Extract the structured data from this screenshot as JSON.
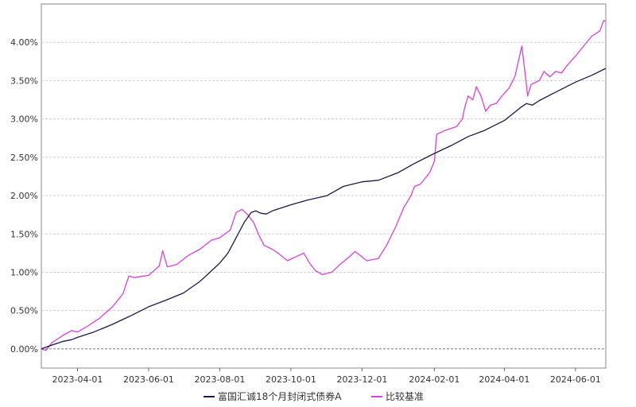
{
  "chart_data": {
    "type": "line",
    "title": "",
    "xlabel": "",
    "ylabel": "",
    "x_range": [
      "2023-03-01",
      "2024-06-27"
    ],
    "ylim": [
      -0.25,
      4.5
    ],
    "y_ticks": [
      0.0,
      0.5,
      1.0,
      1.5,
      2.0,
      2.5,
      3.0,
      3.5,
      4.0
    ],
    "y_tick_labels": [
      "0.00%",
      "0.50%",
      "1.00%",
      "1.50%",
      "2.00%",
      "2.50%",
      "3.00%",
      "3.50%",
      "4.00%"
    ],
    "x_tick_labels": [
      "2023-04-01",
      "2023-06-01",
      "2023-08-01",
      "2023-10-01",
      "2023-12-01",
      "2024-02-01",
      "2024-04-01",
      "2024-06-01"
    ],
    "grid": "horizontal dashed",
    "legend_position": "bottom",
    "series": [
      {
        "name": "富国汇诚18个月封闭式债券A",
        "color": "#1a1a4e",
        "points": [
          [
            "2023-03-01",
            0.0
          ],
          [
            "2023-03-10",
            0.05
          ],
          [
            "2023-03-20",
            0.1
          ],
          [
            "2023-03-27",
            0.12
          ],
          [
            "2023-04-01",
            0.15
          ],
          [
            "2023-04-15",
            0.22
          ],
          [
            "2023-05-01",
            0.32
          ],
          [
            "2023-05-15",
            0.42
          ],
          [
            "2023-06-01",
            0.55
          ],
          [
            "2023-06-15",
            0.63
          ],
          [
            "2023-07-01",
            0.73
          ],
          [
            "2023-07-15",
            0.88
          ],
          [
            "2023-07-25",
            1.02
          ],
          [
            "2023-08-01",
            1.12
          ],
          [
            "2023-08-08",
            1.25
          ],
          [
            "2023-08-15",
            1.45
          ],
          [
            "2023-08-22",
            1.65
          ],
          [
            "2023-08-28",
            1.78
          ],
          [
            "2023-09-01",
            1.8
          ],
          [
            "2023-09-05",
            1.77
          ],
          [
            "2023-09-10",
            1.76
          ],
          [
            "2023-09-15",
            1.8
          ],
          [
            "2023-10-01",
            1.88
          ],
          [
            "2023-10-15",
            1.94
          ],
          [
            "2023-11-01",
            2.0
          ],
          [
            "2023-11-15",
            2.12
          ],
          [
            "2023-12-01",
            2.18
          ],
          [
            "2023-12-15",
            2.2
          ],
          [
            "2024-01-01",
            2.3
          ],
          [
            "2024-01-15",
            2.42
          ],
          [
            "2024-02-01",
            2.55
          ],
          [
            "2024-02-15",
            2.65
          ],
          [
            "2024-03-01",
            2.77
          ],
          [
            "2024-03-15",
            2.85
          ],
          [
            "2024-04-01",
            2.98
          ],
          [
            "2024-04-15",
            3.15
          ],
          [
            "2024-04-20",
            3.2
          ],
          [
            "2024-04-25",
            3.18
          ],
          [
            "2024-05-01",
            3.24
          ],
          [
            "2024-05-15",
            3.35
          ],
          [
            "2024-06-01",
            3.48
          ],
          [
            "2024-06-15",
            3.57
          ],
          [
            "2024-06-27",
            3.66
          ]
        ]
      },
      {
        "name": "比较基准",
        "color": "#dd3edd",
        "points": [
          [
            "2023-03-01",
            0.0
          ],
          [
            "2023-03-05",
            -0.02
          ],
          [
            "2023-03-10",
            0.08
          ],
          [
            "2023-03-20",
            0.18
          ],
          [
            "2023-03-27",
            0.24
          ],
          [
            "2023-04-01",
            0.22
          ],
          [
            "2023-04-10",
            0.3
          ],
          [
            "2023-04-20",
            0.4
          ],
          [
            "2023-05-01",
            0.55
          ],
          [
            "2023-05-10",
            0.72
          ],
          [
            "2023-05-15",
            0.95
          ],
          [
            "2023-05-20",
            0.93
          ],
          [
            "2023-06-01",
            0.96
          ],
          [
            "2023-06-10",
            1.08
          ],
          [
            "2023-06-13",
            1.28
          ],
          [
            "2023-06-17",
            1.07
          ],
          [
            "2023-06-25",
            1.1
          ],
          [
            "2023-07-05",
            1.22
          ],
          [
            "2023-07-15",
            1.3
          ],
          [
            "2023-07-25",
            1.42
          ],
          [
            "2023-08-01",
            1.45
          ],
          [
            "2023-08-10",
            1.55
          ],
          [
            "2023-08-15",
            1.78
          ],
          [
            "2023-08-20",
            1.82
          ],
          [
            "2023-08-25",
            1.75
          ],
          [
            "2023-08-30",
            1.65
          ],
          [
            "2023-09-03",
            1.5
          ],
          [
            "2023-09-08",
            1.35
          ],
          [
            "2023-09-15",
            1.3
          ],
          [
            "2023-09-20",
            1.25
          ],
          [
            "2023-09-28",
            1.15
          ],
          [
            "2023-10-05",
            1.2
          ],
          [
            "2023-10-12",
            1.25
          ],
          [
            "2023-10-17",
            1.12
          ],
          [
            "2023-10-22",
            1.02
          ],
          [
            "2023-10-28",
            0.97
          ],
          [
            "2023-11-05",
            1.0
          ],
          [
            "2023-11-12",
            1.1
          ],
          [
            "2023-11-20",
            1.2
          ],
          [
            "2023-11-25",
            1.27
          ],
          [
            "2023-12-01",
            1.2
          ],
          [
            "2023-12-05",
            1.15
          ],
          [
            "2023-12-15",
            1.18
          ],
          [
            "2023-12-22",
            1.35
          ],
          [
            "2023-12-30",
            1.6
          ],
          [
            "2024-01-06",
            1.85
          ],
          [
            "2024-01-12",
            2.0
          ],
          [
            "2024-01-15",
            2.12
          ],
          [
            "2024-01-20",
            2.15
          ],
          [
            "2024-01-28",
            2.3
          ],
          [
            "2024-02-01",
            2.45
          ],
          [
            "2024-02-03",
            2.8
          ],
          [
            "2024-02-06",
            2.82
          ],
          [
            "2024-02-10",
            2.85
          ],
          [
            "2024-02-20",
            2.9
          ],
          [
            "2024-02-25",
            3.0
          ],
          [
            "2024-02-27",
            3.15
          ],
          [
            "2024-03-01",
            3.3
          ],
          [
            "2024-03-05",
            3.25
          ],
          [
            "2024-03-08",
            3.42
          ],
          [
            "2024-03-12",
            3.3
          ],
          [
            "2024-03-16",
            3.1
          ],
          [
            "2024-03-20",
            3.18
          ],
          [
            "2024-03-25",
            3.2
          ],
          [
            "2024-03-30",
            3.3
          ],
          [
            "2024-04-05",
            3.4
          ],
          [
            "2024-04-10",
            3.55
          ],
          [
            "2024-04-13",
            3.75
          ],
          [
            "2024-04-16",
            3.95
          ],
          [
            "2024-04-18",
            3.7
          ],
          [
            "2024-04-21",
            3.3
          ],
          [
            "2024-04-24",
            3.45
          ],
          [
            "2024-05-01",
            3.5
          ],
          [
            "2024-05-05",
            3.62
          ],
          [
            "2024-05-10",
            3.55
          ],
          [
            "2024-05-15",
            3.62
          ],
          [
            "2024-05-20",
            3.6
          ],
          [
            "2024-05-25",
            3.7
          ],
          [
            "2024-06-01",
            3.82
          ],
          [
            "2024-06-08",
            3.95
          ],
          [
            "2024-06-15",
            4.08
          ],
          [
            "2024-06-22",
            4.15
          ],
          [
            "2024-06-25",
            4.28
          ],
          [
            "2024-06-27",
            4.28
          ]
        ]
      }
    ]
  }
}
